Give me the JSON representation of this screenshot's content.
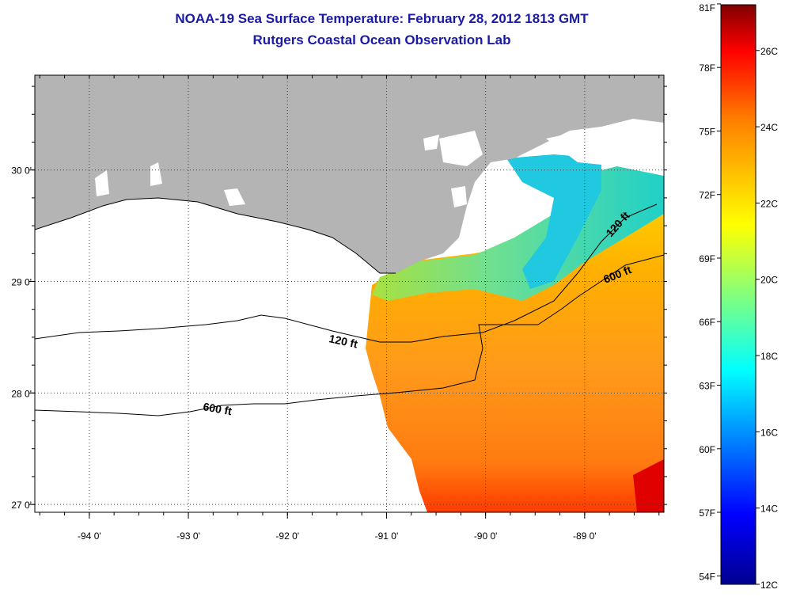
{
  "header": {
    "title": "NOAA-19 Sea Surface Temperature:  February 28, 2012 1813 GMT",
    "subtitle": "Rutgers Coastal Ocean Observation Lab"
  },
  "map": {
    "lon_range": [
      -94.55,
      -88.2
    ],
    "lat_range": [
      26.93,
      30.85
    ],
    "lon_ticks": [
      {
        "value": -94,
        "label": "-94 0'"
      },
      {
        "value": -93,
        "label": "-93 0'"
      },
      {
        "value": -92,
        "label": "-92 0'"
      },
      {
        "value": -91,
        "label": "-91 0'"
      },
      {
        "value": -90,
        "label": "-90 0'"
      },
      {
        "value": -89,
        "label": "-89 0'"
      }
    ],
    "lat_ticks": [
      {
        "value": 27,
        "label": "27 0'"
      },
      {
        "value": 28,
        "label": "28 0'"
      },
      {
        "value": 29,
        "label": "29 0'"
      },
      {
        "value": 30,
        "label": "30 0'"
      }
    ],
    "contours": [
      {
        "name": "120 ft",
        "label": "120 ft"
      },
      {
        "name": "600 ft",
        "label": "600 ft"
      }
    ],
    "colors": {
      "land": "#b4b4b4",
      "cloud_or_nodata": "#ffffff",
      "grid": "#444444"
    }
  },
  "colorbar": {
    "min_c": 12,
    "max_c": 27.2,
    "f_labels": [
      "81F",
      "78F",
      "75F",
      "72F",
      "69F",
      "66F",
      "63F",
      "60F",
      "57F",
      "54F"
    ],
    "f_values": [
      81,
      78,
      75,
      72,
      69,
      66,
      63,
      60,
      57,
      54
    ],
    "c_labels": [
      "26C",
      "24C",
      "22C",
      "20C",
      "18C",
      "16C",
      "14C",
      "12C"
    ],
    "c_values": [
      26,
      24,
      22,
      20,
      18,
      16,
      14,
      12
    ],
    "colormap": [
      "#00008f",
      "#0000ff",
      "#00ffff",
      "#ffff00",
      "#ff8000",
      "#ff0000",
      "#800000"
    ]
  }
}
